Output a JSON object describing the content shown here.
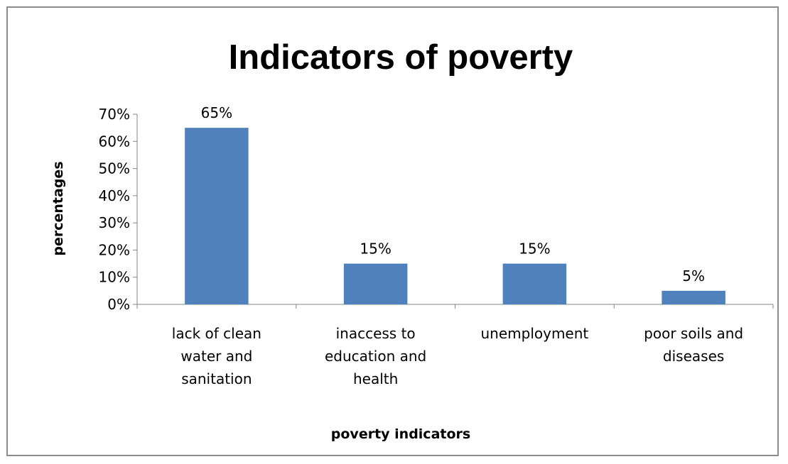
{
  "chart_data": {
    "type": "bar",
    "title": "Indicators of poverty",
    "xlabel": "poverty indicators",
    "ylabel": "percentages",
    "categories": [
      [
        "lack of clean",
        "water and",
        "sanitation"
      ],
      [
        "inaccess to",
        "education and",
        "health"
      ],
      [
        "unemployment"
      ],
      [
        "poor soils and",
        "diseases"
      ]
    ],
    "values": [
      65,
      15,
      15,
      5
    ],
    "data_labels": [
      "65%",
      "15%",
      "15%",
      "5%"
    ],
    "ylim": [
      0,
      70
    ],
    "yticks": [
      0,
      10,
      20,
      30,
      40,
      50,
      60,
      70
    ],
    "ytick_labels": [
      "0%",
      "10%",
      "20%",
      "30%",
      "40%",
      "50%",
      "60%",
      "70%"
    ],
    "grid": false,
    "legend": "none",
    "bar_color": "#4f81bd"
  }
}
